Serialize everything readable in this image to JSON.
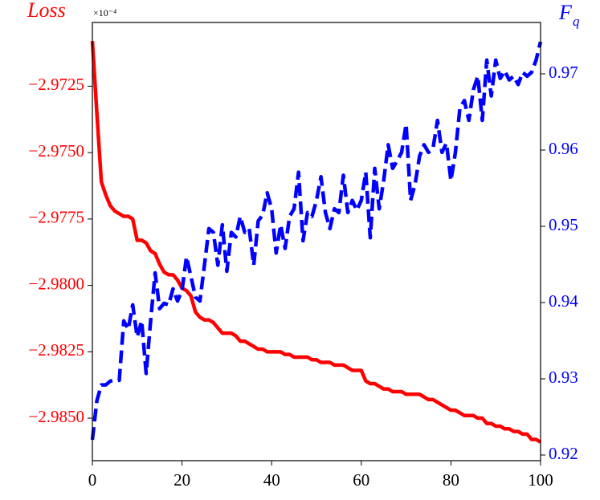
{
  "chart_data": {
    "type": "line",
    "ylabel": "Loss",
    "y_offset_label": "×10⁻⁴",
    "y2label": "F",
    "y2label_subscript": "q",
    "x": [
      0,
      1,
      2,
      3,
      4,
      5,
      6,
      7,
      8,
      9,
      10,
      11,
      12,
      13,
      14,
      15,
      16,
      17,
      18,
      19,
      20,
      21,
      22,
      23,
      24,
      25,
      26,
      27,
      28,
      29,
      30,
      31,
      32,
      33,
      34,
      35,
      36,
      37,
      38,
      39,
      40,
      41,
      42,
      43,
      44,
      45,
      46,
      47,
      48,
      49,
      50,
      51,
      52,
      53,
      54,
      55,
      56,
      57,
      58,
      59,
      60,
      61,
      62,
      63,
      64,
      65,
      66,
      67,
      68,
      69,
      70,
      71,
      72,
      73,
      74,
      75,
      76,
      77,
      78,
      79,
      80,
      81,
      82,
      83,
      84,
      85,
      86,
      87,
      88,
      89,
      90,
      91,
      92,
      93,
      94,
      95,
      96,
      97,
      98,
      99,
      100
    ],
    "xlim": [
      0,
      100
    ],
    "xticks": [
      0,
      20,
      40,
      60,
      80,
      100
    ],
    "ylim": [
      -2.9866,
      -2.9701
    ],
    "yticks": [
      {
        "value": -2.9725,
        "label": "−2.9725"
      },
      {
        "value": -2.975,
        "label": "−2.9750"
      },
      {
        "value": -2.9775,
        "label": "−2.9775"
      },
      {
        "value": -2.98,
        "label": "−2.9800"
      },
      {
        "value": -2.9825,
        "label": "−2.9825"
      },
      {
        "value": -2.985,
        "label": "−2.9850"
      }
    ],
    "y2lim": [
      0.91926,
      0.97674
    ],
    "y2ticks": [
      0.92,
      0.93,
      0.94,
      0.95,
      0.96,
      0.97
    ],
    "series": [
      {
        "color": "#ff0000",
        "values": [
          -2.9708,
          -2.9735,
          -2.9761,
          -2.9766,
          -2.977,
          -2.9772,
          -2.9773,
          -2.9774,
          -2.9774,
          -2.9775,
          -2.9783,
          -2.9783,
          -2.9784,
          -2.9787,
          -2.9788,
          -2.9792,
          -2.9795,
          -2.9796,
          -2.9796,
          -2.9798,
          -2.9801,
          -2.9802,
          -2.9804,
          -2.981,
          -2.9812,
          -2.9813,
          -2.9813,
          -2.9814,
          -2.9816,
          -2.9818,
          -2.9818,
          -2.9818,
          -2.9819,
          -2.9821,
          -2.9821,
          -2.9822,
          -2.9823,
          -2.9824,
          -2.9824,
          -2.9825,
          -2.9825,
          -2.9825,
          -2.9825,
          -2.9826,
          -2.9826,
          -2.9827,
          -2.9827,
          -2.9827,
          -2.9827,
          -2.9828,
          -2.9828,
          -2.9829,
          -2.9829,
          -2.9829,
          -2.983,
          -2.983,
          -2.983,
          -2.9831,
          -2.9832,
          -2.9832,
          -2.9832,
          -2.9836,
          -2.9837,
          -2.9837,
          -2.9838,
          -2.9839,
          -2.9839,
          -2.984,
          -2.984,
          -2.984,
          -2.9841,
          -2.9841,
          -2.9841,
          -2.9841,
          -2.9842,
          -2.9843,
          -2.9843,
          -2.9844,
          -2.9845,
          -2.9846,
          -2.9847,
          -2.9847,
          -2.9848,
          -2.9849,
          -2.9849,
          -2.9849,
          -2.985,
          -2.985,
          -2.9852,
          -2.9852,
          -2.9853,
          -2.9853,
          -2.9854,
          -2.9854,
          -2.9855,
          -2.9855,
          -2.9856,
          -2.9856,
          -2.9858,
          -2.9858,
          -2.9859
        ]
      },
      {
        "color": "#0000ff",
        "axis": "y2",
        "dashed": true,
        "values": [
          0.922,
          0.9271,
          0.9292,
          0.9292,
          0.9297,
          0.9298,
          0.9298,
          0.9376,
          0.9365,
          0.9397,
          0.9355,
          0.9376,
          0.9307,
          0.9376,
          0.9439,
          0.9392,
          0.9399,
          0.9397,
          0.9418,
          0.9402,
          0.9416,
          0.946,
          0.9434,
          0.9407,
          0.9402,
          0.9449,
          0.9497,
          0.9492,
          0.9449,
          0.9502,
          0.9441,
          0.9492,
          0.9486,
          0.9513,
          0.9492,
          0.9497,
          0.9449,
          0.9507,
          0.9515,
          0.9544,
          0.9523,
          0.9465,
          0.9502,
          0.9471,
          0.9513,
          0.9523,
          0.9571,
          0.9481,
          0.9518,
          0.9513,
          0.9534,
          0.9565,
          0.9518,
          0.9497,
          0.9523,
          0.9518,
          0.9567,
          0.9518,
          0.9534,
          0.9521,
          0.9534,
          0.9571,
          0.9485,
          0.9576,
          0.9523,
          0.956,
          0.9607,
          0.9576,
          0.9586,
          0.9597,
          0.9634,
          0.9534,
          0.9555,
          0.9592,
          0.9607,
          0.9597,
          0.9602,
          0.9639,
          0.9597,
          0.9609,
          0.956,
          0.9597,
          0.9655,
          0.9665,
          0.9639,
          0.9679,
          0.9697,
          0.9639,
          0.9718,
          0.9671,
          0.9718,
          0.9694,
          0.9704,
          0.9692,
          0.9697,
          0.9686,
          0.9702,
          0.9697,
          0.9702,
          0.9718,
          0.9742
        ]
      }
    ]
  }
}
